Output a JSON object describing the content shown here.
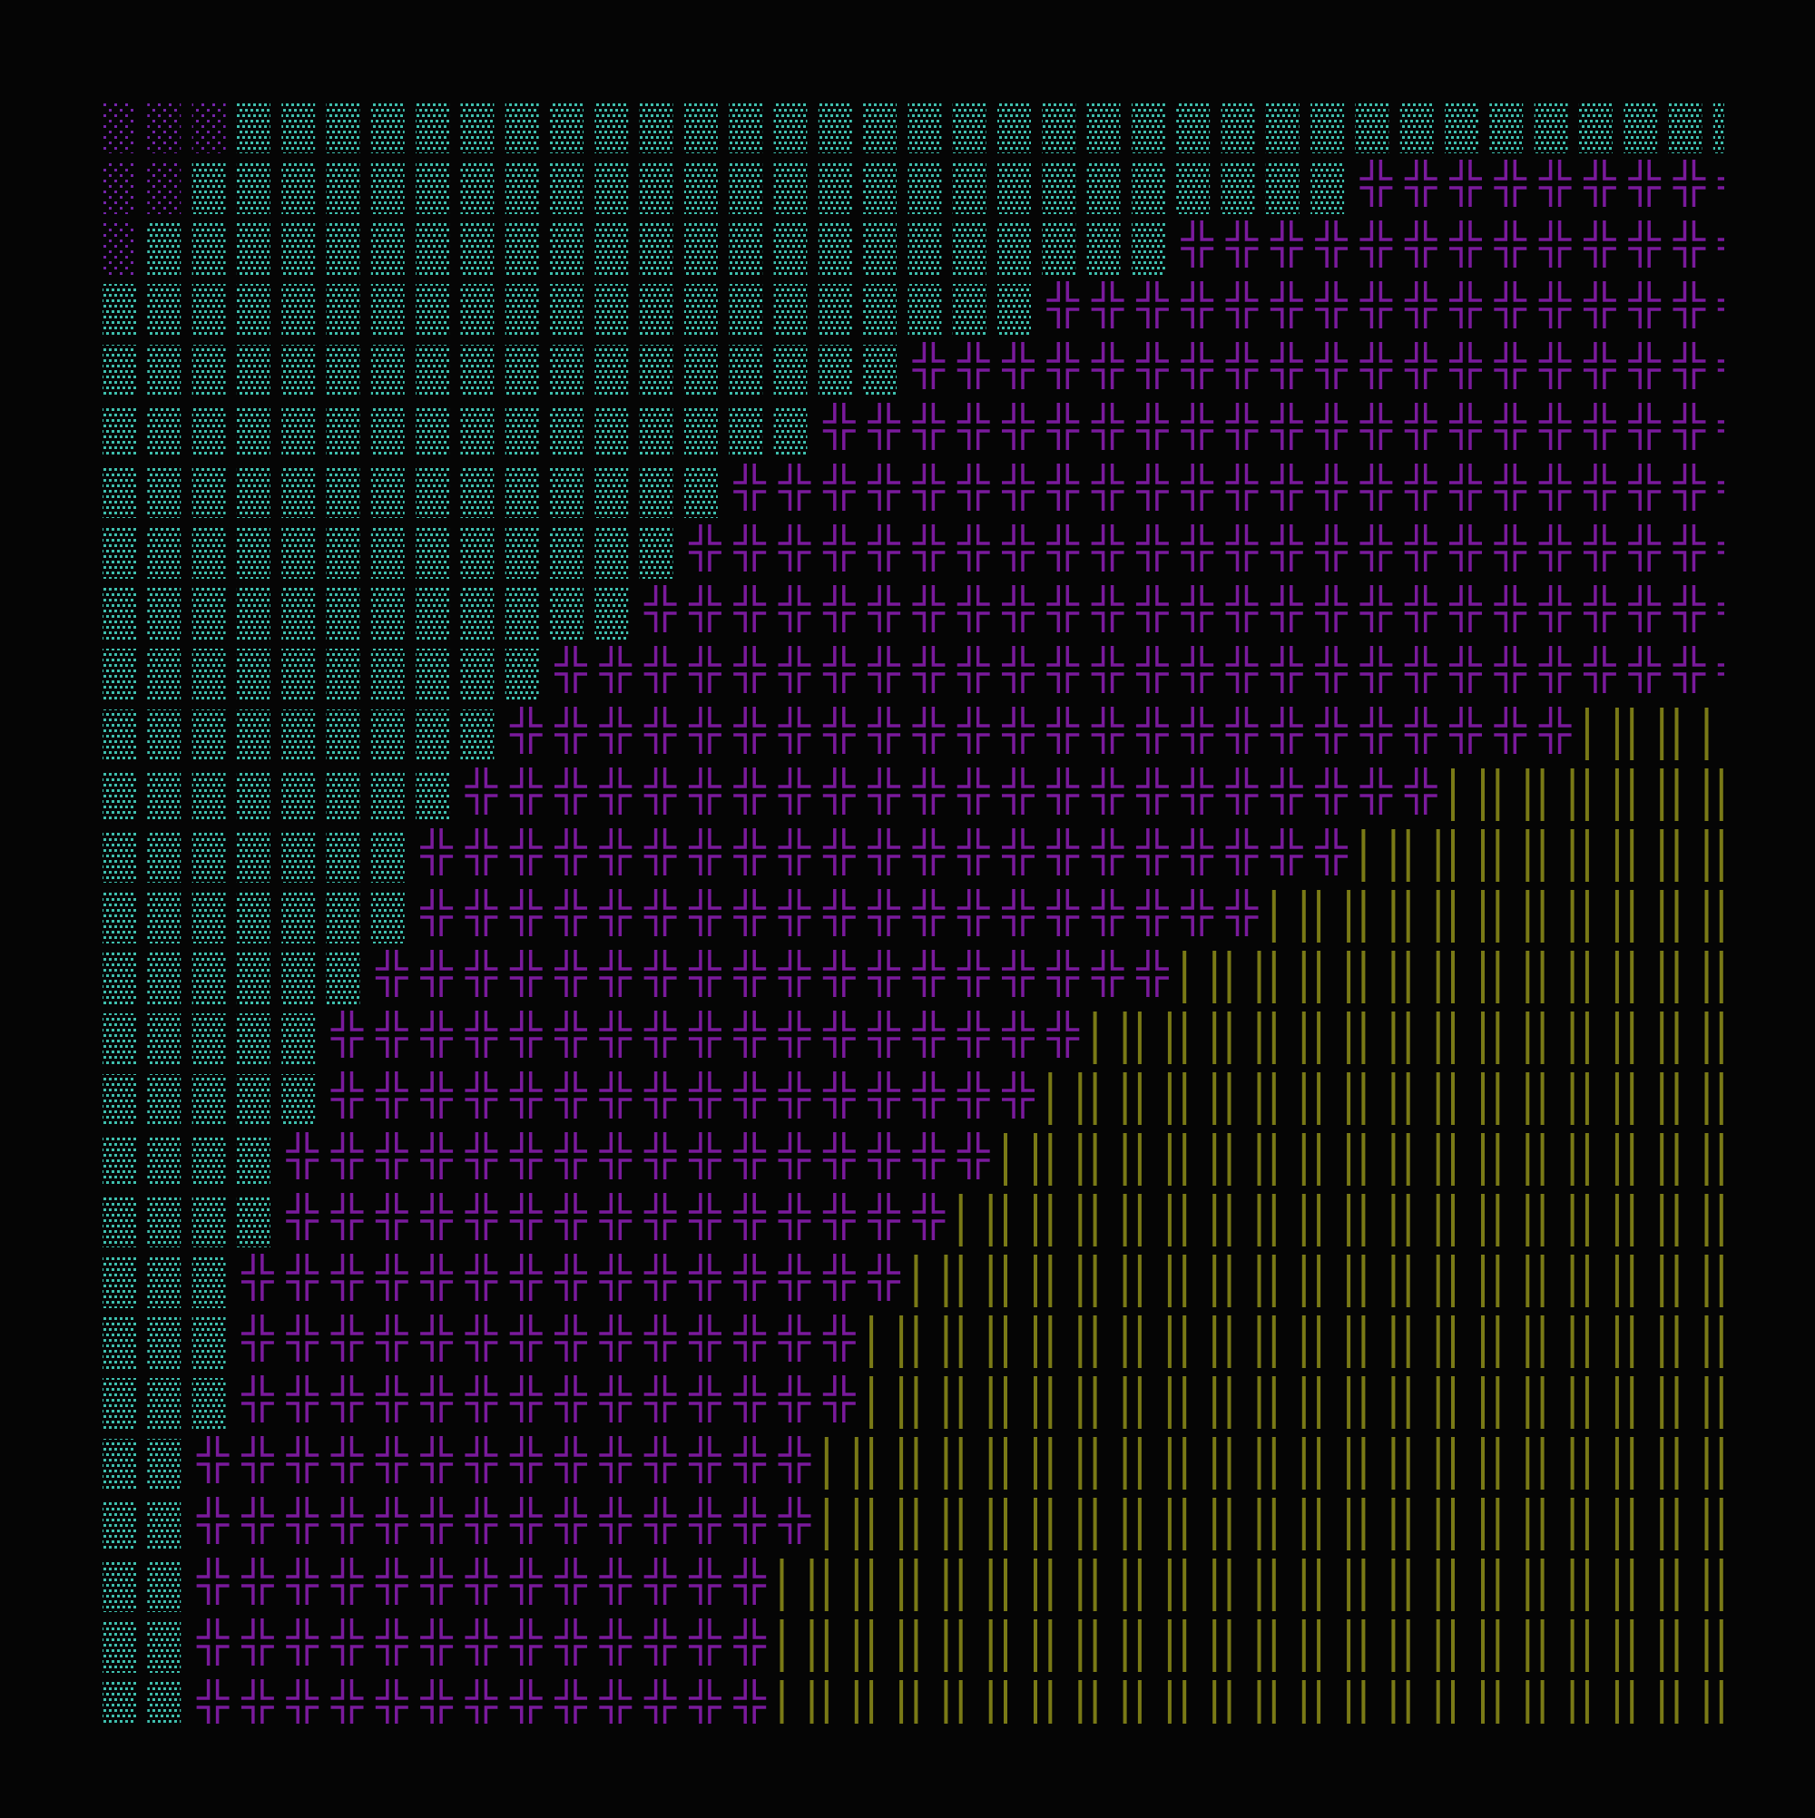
{
  "terminal": {
    "background": "#050505",
    "glyph_colors": {
      "░": "#7424a8",
      "▒": "#3fbfae",
      "╬": "#7a1a9c",
      "║": "#7a7a16"
    },
    "glyph_names": {
      "░": "light-shade",
      "▒": "medium-shade",
      "╬": "double-cross",
      "║": "double-vertical"
    },
    "rows": [
      "░░░▒▒▒▒▒▒▒▒▒▒▒▒▒▒▒▒▒▒▒▒▒▒▒▒▒▒▒▒▒▒▒▒▒▒",
      "░░▒▒▒▒▒▒▒▒▒▒▒▒▒▒▒▒▒▒▒▒▒▒▒▒▒▒╬╬╬╬╬╬╬╬╬",
      "░▒▒▒▒▒▒▒▒▒▒▒▒▒▒▒▒▒▒▒▒▒▒▒╬╬╬╬╬╬╬╬╬╬╬╬╬",
      "▒▒▒▒▒▒▒▒▒▒▒▒▒▒▒▒▒▒▒▒▒╬╬╬╬╬╬╬╬╬╬╬╬╬╬╬╬",
      "▒▒▒▒▒▒▒▒▒▒▒▒▒▒▒▒▒▒╬╬╬╬╬╬╬╬╬╬╬╬╬╬╬╬╬╬╬",
      "▒▒▒▒▒▒▒▒▒▒▒▒▒▒▒▒╬╬╬╬╬╬╬╬╬╬╬╬╬╬╬╬╬╬╬╬╬",
      "▒▒▒▒▒▒▒▒▒▒▒▒▒▒╬╬╬╬╬╬╬╬╬╬╬╬╬╬╬╬╬╬╬╬╬╬╬",
      "▒▒▒▒▒▒▒▒▒▒▒▒▒╬╬╬╬╬╬╬╬╬╬╬╬╬╬╬╬╬╬╬╬╬╬╬╬",
      "▒▒▒▒▒▒▒▒▒▒▒▒╬╬╬╬╬╬╬╬╬╬╬╬╬╬╬╬╬╬╬╬╬╬╬╬╬",
      "▒▒▒▒▒▒▒▒▒▒╬╬╬╬╬╬╬╬╬╬╬╬╬╬╬╬╬╬╬╬╬╬╬╬╬╬╬",
      "▒▒▒▒▒▒▒▒▒╬╬╬╬╬╬╬╬╬╬╬╬╬╬╬╬╬╬╬╬╬╬╬╬║║║",
      "▒▒▒▒▒▒▒▒╬╬╬╬╬╬╬╬╬╬╬╬╬╬╬╬╬╬╬╬╬╬║║║║║║║",
      "▒▒▒▒▒▒▒╬╬╬╬╬╬╬╬╬╬╬╬╬╬╬╬╬╬╬╬╬║║║║║║║║║",
      "▒▒▒▒▒▒▒╬╬╬╬╬╬╬╬╬╬╬╬╬╬╬╬╬╬╬║║║║║║║║║║║",
      "▒▒▒▒▒▒╬╬╬╬╬╬╬╬╬╬╬╬╬╬╬╬╬╬║║║║║║║║║║║║║",
      "▒▒▒▒▒╬╬╬╬╬╬╬╬╬╬╬╬╬╬╬╬╬║║║║║║║║║║║║║║║",
      "▒▒▒▒▒╬╬╬╬╬╬╬╬╬╬╬╬╬╬╬╬║║║║║║║║║║║║║║║║",
      "▒▒▒▒╬╬╬╬╬╬╬╬╬╬╬╬╬╬╬╬║║║║║║║║║║║║║║║║║",
      "▒▒▒▒╬╬╬╬╬╬╬╬╬╬╬╬╬╬╬║║║║║║║║║║║║║║║║║║",
      "▒▒▒╬╬╬╬╬╬╬╬╬╬╬╬╬╬╬║║║║║║║║║║║║║║║║║║║",
      "▒▒▒╬╬╬╬╬╬╬╬╬╬╬╬╬╬║║║║║║║║║║║║║║║║║║║║",
      "▒▒▒╬╬╬╬╬╬╬╬╬╬╬╬╬╬║║║║║║║║║║║║║║║║║║║║",
      "▒▒╬╬╬╬╬╬╬╬╬╬╬╬╬╬║║║║║║║║║║║║║║║║║║║║║",
      "▒▒╬╬╬╬╬╬╬╬╬╬╬╬╬╬║║║║║║║║║║║║║║║║║║║║║",
      "▒▒╬╬╬╬╬╬╬╬╬╬╬╬╬║║║║║║║║║║║║║║║║║║║║║║",
      "▒▒╬╬╬╬╬╬╬╬╬╬╬╬╬║║║║║║║║║║║║║║║║║║║║║║",
      "▒▒╬╬╬╬╬╬╬╬╬╬╬╬╬║║║║║║║║║║║║║║║║║║║║║║"
    ]
  }
}
